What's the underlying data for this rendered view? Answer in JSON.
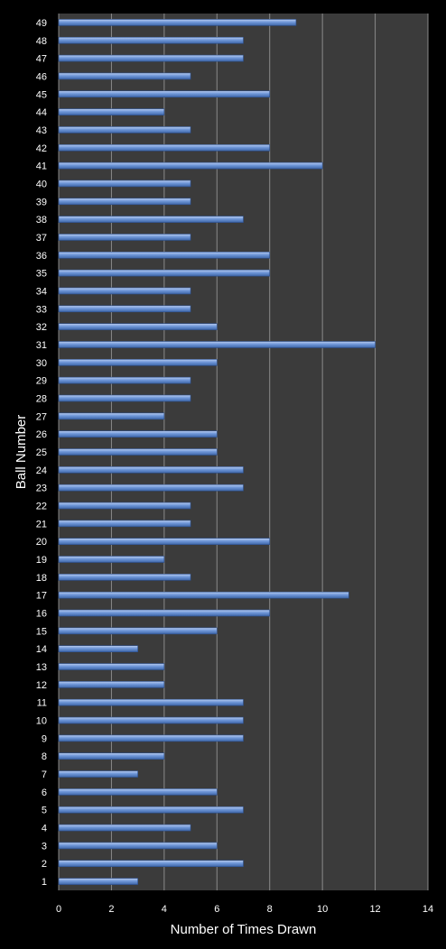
{
  "colors": {
    "background": "#000000",
    "plot_area": "#3b3b3b",
    "gridline": "#8a8a8a",
    "bar_light": "#b9cdf0",
    "bar_mid": "#6f97d8",
    "bar_dark": "#3e66a8",
    "text": "#ffffff"
  },
  "chart_data": {
    "type": "bar",
    "orientation": "horizontal",
    "xlabel": "Number of Times Drawn",
    "ylabel": "Ball Number",
    "xlim": [
      0,
      14
    ],
    "x_ticks": [
      "0",
      "2",
      "4",
      "6",
      "8",
      "10",
      "12",
      "14"
    ],
    "grid": "vertical major gridlines",
    "legend": "none",
    "categories": [
      "1",
      "2",
      "3",
      "4",
      "5",
      "6",
      "7",
      "8",
      "9",
      "10",
      "11",
      "12",
      "13",
      "14",
      "15",
      "16",
      "17",
      "18",
      "19",
      "20",
      "21",
      "22",
      "23",
      "24",
      "25",
      "26",
      "27",
      "28",
      "29",
      "30",
      "31",
      "32",
      "33",
      "34",
      "35",
      "36",
      "37",
      "38",
      "39",
      "40",
      "41",
      "42",
      "43",
      "44",
      "45",
      "46",
      "47",
      "48",
      "49"
    ],
    "values": [
      3,
      7,
      6,
      5,
      7,
      6,
      3,
      4,
      7,
      7,
      7,
      4,
      4,
      3,
      6,
      8,
      11,
      5,
      4,
      8,
      5,
      5,
      7,
      7,
      6,
      6,
      4,
      5,
      5,
      6,
      12,
      6,
      5,
      5,
      8,
      8,
      5,
      7,
      5,
      5,
      10,
      8,
      5,
      4,
      8,
      5,
      7,
      7,
      9
    ]
  }
}
